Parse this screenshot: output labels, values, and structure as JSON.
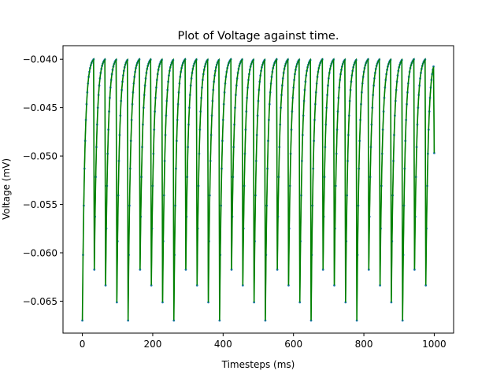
{
  "chart_data": {
    "type": "line",
    "title": "Plot of Voltage against time.",
    "xlabel": "Timesteps (ms)",
    "ylabel": "Voltage (mV)",
    "xlim": [
      -55,
      1055
    ],
    "ylim": [
      -0.0683,
      -0.0386
    ],
    "x_ticks": [
      0,
      200,
      400,
      600,
      800,
      1000
    ],
    "x_tick_labels": [
      "0",
      "200",
      "400",
      "600",
      "800",
      "1000"
    ],
    "y_ticks": [
      -0.065,
      -0.06,
      -0.055,
      -0.05,
      -0.045,
      -0.04
    ],
    "y_tick_labels": [
      "−0.065",
      "−0.060",
      "−0.055",
      "−0.050",
      "−0.045",
      "−0.040"
    ],
    "grid": false,
    "model": {
      "v_rest": -0.067,
      "v_threshold": -0.04,
      "v_reset": -0.067,
      "interspike_interval_ms": 32.5,
      "time_start_ms": 0,
      "time_end_ms": 1000,
      "sample_step_ms": 2,
      "last_sample": {
        "x": 1000,
        "y": -0.0497
      }
    },
    "series": [
      {
        "role": "line",
        "color": "#008000"
      },
      {
        "role": "markers",
        "color": "#1f77b4"
      }
    ]
  }
}
